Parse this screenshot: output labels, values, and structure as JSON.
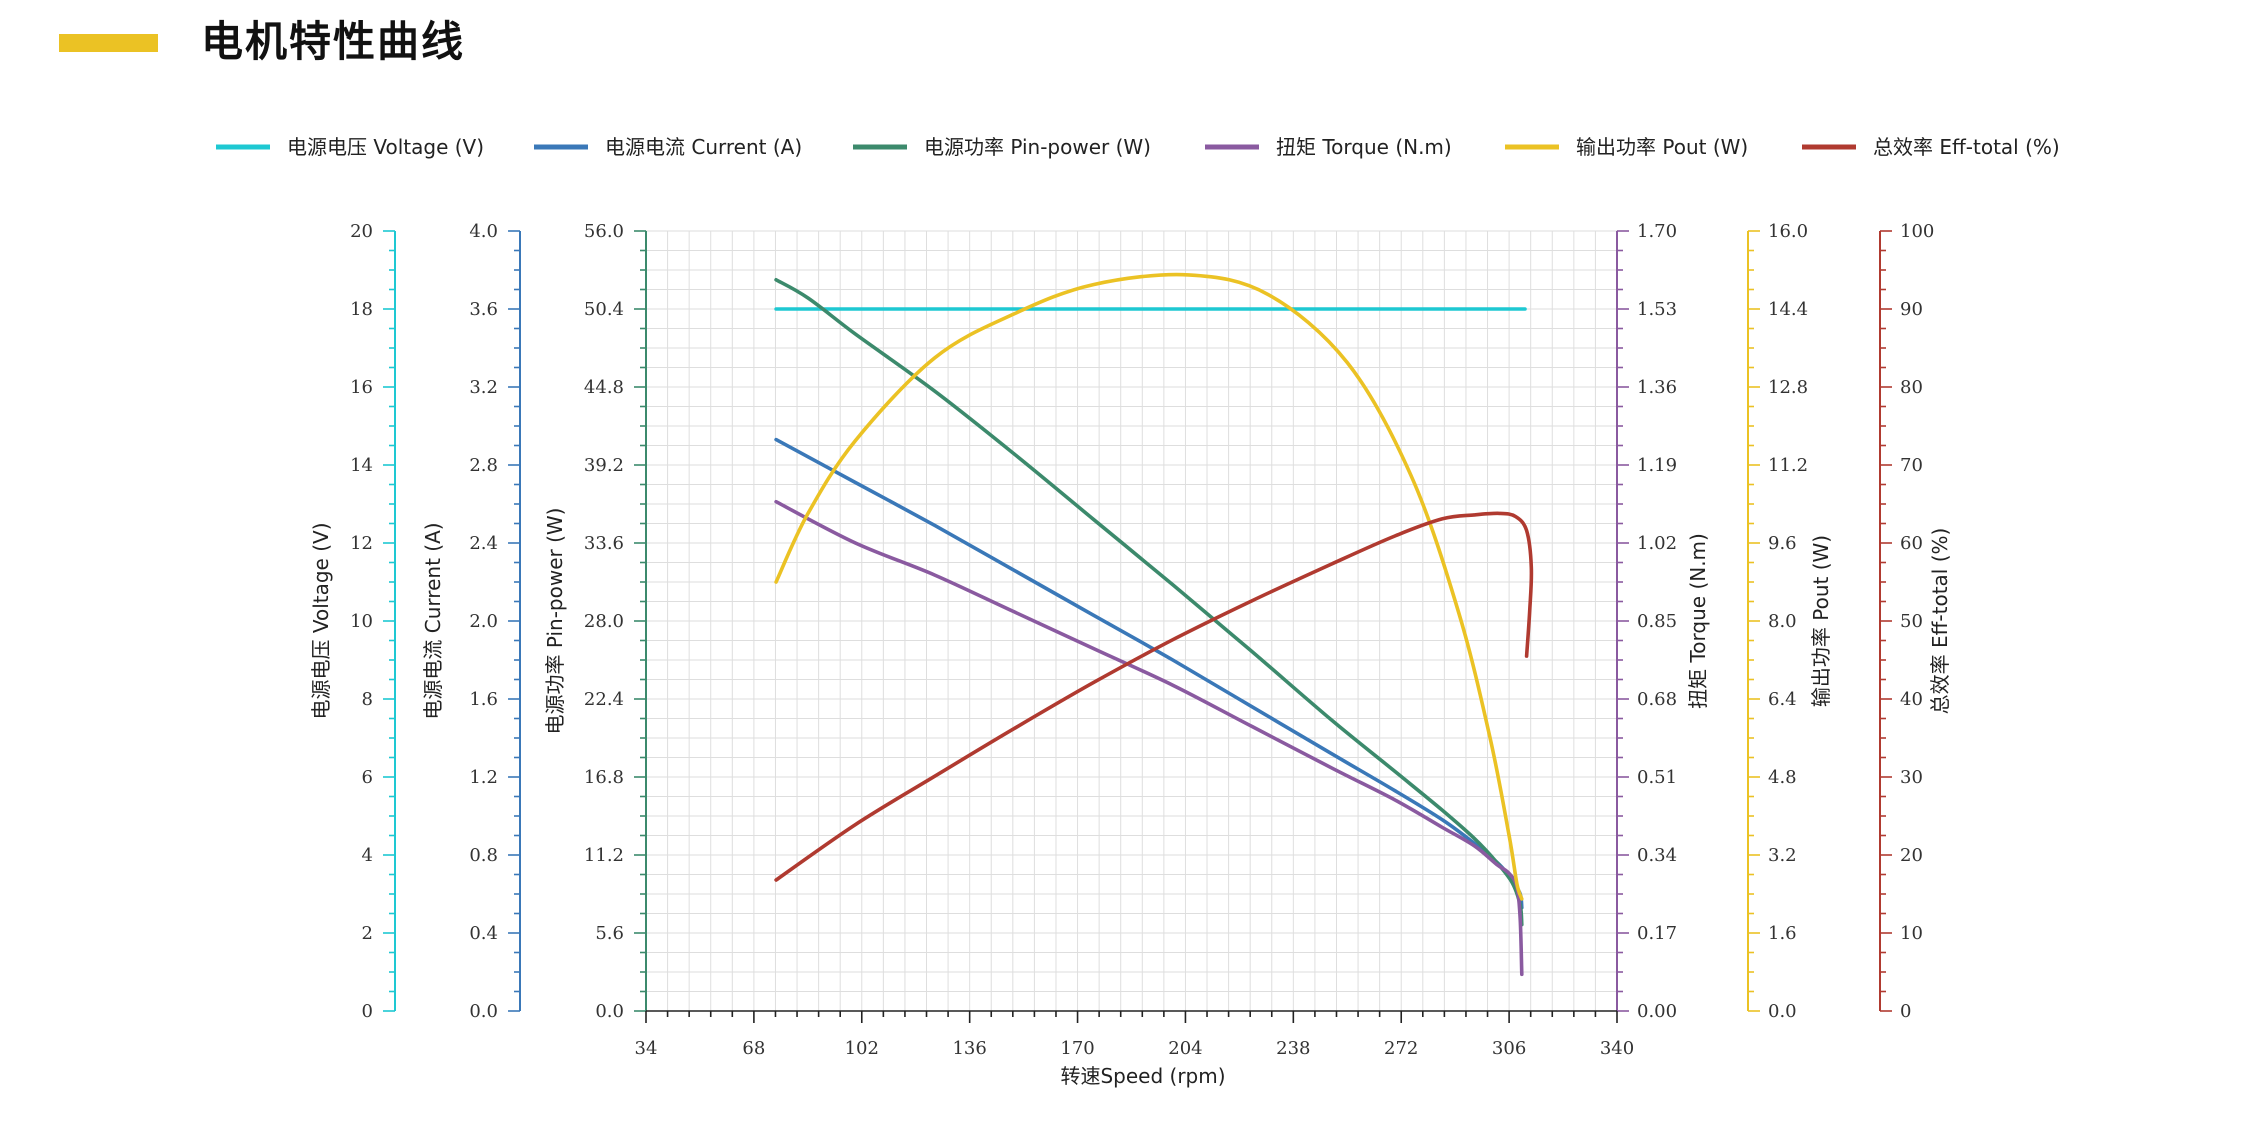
{
  "page": {
    "title": "电机特性曲线",
    "accent_color": "#EBC224"
  },
  "chart_data": {
    "type": "line",
    "xlabel": "转速Speed (rpm)",
    "x_ticks": [
      "34",
      "68",
      "102",
      "136",
      "170",
      "204",
      "238",
      "272",
      "306",
      "340"
    ],
    "xlim": [
      34,
      340
    ],
    "legend_placement": "top",
    "grid": true,
    "y_axes": [
      {
        "id": "voltage",
        "label": "电源电压 Voltage (V)",
        "color": "#1EC8D2",
        "ylim": [
          0,
          20
        ],
        "ticks": [
          "0",
          "2",
          "4",
          "6",
          "8",
          "10",
          "12",
          "14",
          "16",
          "18",
          "20"
        ],
        "side": "left"
      },
      {
        "id": "current",
        "label": "电源电流 Current (A)",
        "color": "#3A78B8",
        "ylim": [
          0,
          4
        ],
        "ticks": [
          "0.0",
          "0.4",
          "0.8",
          "1.2",
          "1.6",
          "2.0",
          "2.4",
          "2.8",
          "3.2",
          "3.6",
          "4.0"
        ],
        "side": "left"
      },
      {
        "id": "pin",
        "label": "电源功率 Pin-power (W)",
        "color": "#3C8A6C",
        "ylim": [
          0,
          56
        ],
        "ticks": [
          "0.0",
          "5.6",
          "11.2",
          "16.8",
          "22.4",
          "28.0",
          "33.6",
          "39.2",
          "44.8",
          "50.4",
          "56.0"
        ],
        "side": "left"
      },
      {
        "id": "torque",
        "label": "扭矩 Torque (N.m)",
        "color": "#8A5AA0",
        "ylim": [
          0,
          1.7
        ],
        "ticks": [
          "0.00",
          "0.17",
          "0.34",
          "0.51",
          "0.68",
          "0.85",
          "1.02",
          "1.19",
          "1.36",
          "1.53",
          "1.70"
        ],
        "side": "right"
      },
      {
        "id": "pout",
        "label": "输出功率 Pout (W)",
        "color": "#EBC224",
        "ylim": [
          0,
          16
        ],
        "ticks": [
          "0.0",
          "1.6",
          "3.2",
          "4.8",
          "6.4",
          "8.0",
          "9.6",
          "11.2",
          "12.8",
          "14.4",
          "16.0"
        ],
        "side": "right"
      },
      {
        "id": "eff",
        "label": "总效率 Eff-total (%)",
        "color": "#B03A30",
        "ylim": [
          0,
          100
        ],
        "ticks": [
          "0",
          "10",
          "20",
          "30",
          "40",
          "50",
          "60",
          "70",
          "80",
          "90",
          "100"
        ],
        "side": "right"
      }
    ],
    "series": [
      {
        "name": "电源电压 Voltage (V)",
        "axis": "voltage",
        "color": "#1EC8D2",
        "points": [
          [
            75,
            18.0
          ],
          [
            100,
            18.0
          ],
          [
            150,
            18.0
          ],
          [
            200,
            18.0
          ],
          [
            250,
            18.0
          ],
          [
            300,
            18.0
          ],
          [
            311,
            18.0
          ]
        ]
      },
      {
        "name": "电源电流 Current (A)",
        "axis": "current",
        "color": "#3A78B8",
        "points": [
          [
            75,
            2.93
          ],
          [
            100,
            2.71
          ],
          [
            125,
            2.49
          ],
          [
            150,
            2.26
          ],
          [
            175,
            2.03
          ],
          [
            200,
            1.8
          ],
          [
            225,
            1.56
          ],
          [
            250,
            1.32
          ],
          [
            270,
            1.13
          ],
          [
            285,
            0.98
          ],
          [
            295,
            0.86
          ],
          [
            303,
            0.75
          ],
          [
            307,
            0.67
          ],
          [
            309.5,
            0.6
          ],
          [
            310,
            0.53
          ]
        ]
      },
      {
        "name": "电源功率 Pin-power (W)",
        "axis": "pin",
        "color": "#3C8A6C",
        "points": [
          [
            75,
            52.5
          ],
          [
            85,
            51.2
          ],
          [
            100,
            48.6
          ],
          [
            125,
            44.5
          ],
          [
            150,
            40.0
          ],
          [
            175,
            35.3
          ],
          [
            200,
            30.6
          ],
          [
            225,
            25.8
          ],
          [
            250,
            20.9
          ],
          [
            270,
            17.2
          ],
          [
            285,
            14.4
          ],
          [
            295,
            12.4
          ],
          [
            302,
            10.7
          ],
          [
            307,
            9.2
          ],
          [
            309.5,
            7.6
          ],
          [
            310,
            6.2
          ]
        ]
      },
      {
        "name": "扭矩 Torque (N.m)",
        "axis": "torque",
        "color": "#8A5AA0",
        "points": [
          [
            75,
            1.11
          ],
          [
            100,
            1.02
          ],
          [
            125,
            0.95
          ],
          [
            150,
            0.87
          ],
          [
            175,
            0.79
          ],
          [
            200,
            0.71
          ],
          [
            225,
            0.62
          ],
          [
            250,
            0.53
          ],
          [
            270,
            0.46
          ],
          [
            285,
            0.4
          ],
          [
            295,
            0.36
          ],
          [
            302,
            0.32
          ],
          [
            306,
            0.3
          ],
          [
            308.5,
            0.27
          ],
          [
            309.5,
            0.2
          ],
          [
            310,
            0.08
          ]
        ]
      },
      {
        "name": "输出功率 Pout (W)",
        "axis": "pout",
        "color": "#EBC224",
        "points": [
          [
            75,
            8.8
          ],
          [
            85,
            10.2
          ],
          [
            100,
            11.7
          ],
          [
            125,
            13.4
          ],
          [
            150,
            14.3
          ],
          [
            175,
            14.9
          ],
          [
            205,
            15.1
          ],
          [
            230,
            14.7
          ],
          [
            255,
            13.3
          ],
          [
            275,
            11.0
          ],
          [
            290,
            8.2
          ],
          [
            300,
            5.6
          ],
          [
            306,
            3.6
          ],
          [
            308.5,
            2.6
          ],
          [
            310,
            2.3
          ]
        ]
      },
      {
        "name": "总效率 Eff-total (%)",
        "axis": "eff",
        "color": "#B03A30",
        "points": [
          [
            75,
            16.8
          ],
          [
            100,
            23.9
          ],
          [
            125,
            30.1
          ],
          [
            150,
            36.2
          ],
          [
            175,
            42.1
          ],
          [
            200,
            47.6
          ],
          [
            225,
            52.6
          ],
          [
            250,
            57.3
          ],
          [
            270,
            60.9
          ],
          [
            285,
            63.1
          ],
          [
            295,
            63.6
          ],
          [
            303,
            63.8
          ],
          [
            308,
            63.4
          ],
          [
            311.5,
            61.6
          ],
          [
            313,
            56.9
          ],
          [
            312.5,
            51.3
          ],
          [
            311.5,
            45.5
          ]
        ]
      }
    ]
  }
}
